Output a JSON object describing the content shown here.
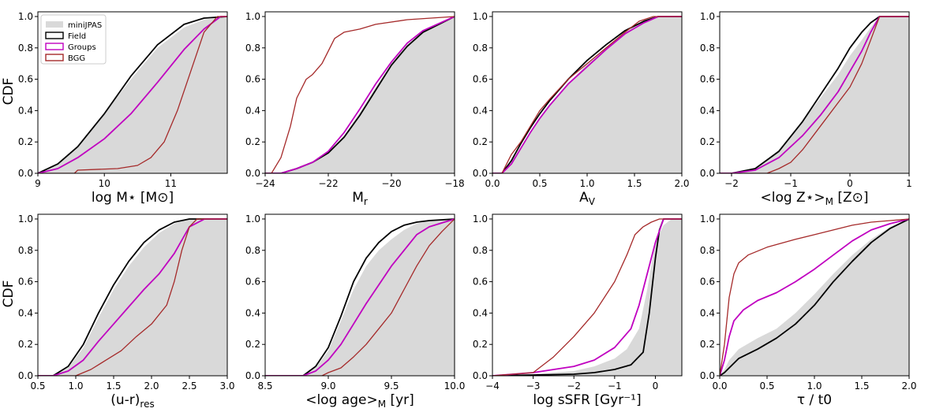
{
  "y_label": "CDF",
  "legend": [
    {
      "label": "miniJPAS",
      "color": "#d9d9d9",
      "kind": "fill"
    },
    {
      "label": "Field",
      "color": "#000000",
      "kind": "line"
    },
    {
      "label": "Groups",
      "color": "#c000c0",
      "kind": "line"
    },
    {
      "label": "BGG",
      "color": "#a52a2a",
      "kind": "line"
    }
  ],
  "chart_data": [
    {
      "type": "line",
      "xlabel": "log M⋆ [M⊙]",
      "xlim": [
        9,
        11.85
      ],
      "ylim": [
        0,
        1.03
      ],
      "xticks": [
        9,
        10,
        11
      ],
      "xticklabels": [
        "9",
        "10",
        "11"
      ],
      "series": [
        {
          "name": "miniJPAS",
          "x": [
            9.0,
            9.3,
            9.6,
            10.0,
            10.4,
            10.8,
            11.2,
            11.5,
            11.85
          ],
          "y": [
            0,
            0.06,
            0.17,
            0.38,
            0.6,
            0.8,
            0.93,
            0.98,
            1.0
          ]
        },
        {
          "name": "Field",
          "x": [
            9.0,
            9.3,
            9.6,
            10.0,
            10.4,
            10.8,
            11.2,
            11.5,
            11.85
          ],
          "y": [
            0,
            0.06,
            0.17,
            0.38,
            0.62,
            0.82,
            0.95,
            0.99,
            1.0
          ]
        },
        {
          "name": "Groups",
          "x": [
            9.0,
            9.3,
            9.6,
            10.0,
            10.4,
            10.8,
            11.2,
            11.5,
            11.75
          ],
          "y": [
            0,
            0.03,
            0.1,
            0.22,
            0.38,
            0.58,
            0.79,
            0.92,
            1.0
          ]
        },
        {
          "name": "BGG",
          "x": [
            9.0,
            9.55,
            9.6,
            10.2,
            10.5,
            10.7,
            10.9,
            11.1,
            11.3,
            11.5,
            11.7
          ],
          "y": [
            0,
            0,
            0.02,
            0.03,
            0.05,
            0.1,
            0.2,
            0.4,
            0.65,
            0.9,
            1.0
          ]
        }
      ]
    },
    {
      "type": "line",
      "xlabel": "M_r",
      "xlim": [
        -24,
        -18
      ],
      "ylim": [
        0,
        1.03
      ],
      "xticks": [
        -24,
        -22,
        -20,
        -18
      ],
      "xticklabels": [
        "−24",
        "−22",
        "−20",
        "−18"
      ],
      "series": [
        {
          "name": "miniJPAS",
          "x": [
            -23.5,
            -23.0,
            -22.5,
            -22.0,
            -21.5,
            -21.0,
            -20.5,
            -20.0,
            -19.5,
            -19.0,
            -18.0
          ],
          "y": [
            0,
            0.03,
            0.07,
            0.13,
            0.24,
            0.39,
            0.55,
            0.7,
            0.82,
            0.9,
            1.0
          ]
        },
        {
          "name": "Field",
          "x": [
            -23.5,
            -23.0,
            -22.5,
            -22.0,
            -21.5,
            -21.0,
            -20.5,
            -20.0,
            -19.5,
            -19.0,
            -18.0
          ],
          "y": [
            0,
            0.03,
            0.07,
            0.13,
            0.23,
            0.37,
            0.53,
            0.69,
            0.81,
            0.9,
            1.0
          ]
        },
        {
          "name": "Groups",
          "x": [
            -23.5,
            -23.0,
            -22.5,
            -22.0,
            -21.5,
            -21.0,
            -20.5,
            -20.0,
            -19.5,
            -19.0,
            -18.0
          ],
          "y": [
            0,
            0.03,
            0.07,
            0.14,
            0.26,
            0.41,
            0.57,
            0.71,
            0.83,
            0.91,
            1.0
          ]
        },
        {
          "name": "BGG",
          "x": [
            -23.8,
            -23.5,
            -23.2,
            -23.0,
            -22.7,
            -22.5,
            -22.2,
            -22.0,
            -21.8,
            -21.5,
            -21.0,
            -20.5,
            -19.5,
            -18.0
          ],
          "y": [
            0,
            0.1,
            0.3,
            0.48,
            0.6,
            0.63,
            0.7,
            0.78,
            0.86,
            0.9,
            0.92,
            0.95,
            0.98,
            1.0
          ]
        }
      ]
    },
    {
      "type": "line",
      "xlabel": "A_V",
      "xlim": [
        0,
        2.0
      ],
      "ylim": [
        0,
        1.03
      ],
      "xticks": [
        0,
        0.5,
        1.0,
        1.5,
        2.0
      ],
      "xticklabels": [
        "0.0",
        "0.5",
        "1.0",
        "1.5",
        "2.0"
      ],
      "series": [
        {
          "name": "miniJPAS",
          "x": [
            0.1,
            0.2,
            0.3,
            0.4,
            0.5,
            0.6,
            0.8,
            1.0,
            1.2,
            1.4,
            1.6,
            1.75,
            2.0
          ],
          "y": [
            0,
            0.07,
            0.17,
            0.26,
            0.35,
            0.43,
            0.57,
            0.7,
            0.8,
            0.9,
            0.97,
            1.0,
            1.0
          ]
        },
        {
          "name": "Field",
          "x": [
            0.1,
            0.2,
            0.3,
            0.4,
            0.5,
            0.6,
            0.8,
            1.0,
            1.2,
            1.4,
            1.6,
            1.75
          ],
          "y": [
            0,
            0.08,
            0.19,
            0.29,
            0.38,
            0.46,
            0.6,
            0.72,
            0.82,
            0.91,
            0.97,
            1.0
          ]
        },
        {
          "name": "Groups",
          "x": [
            0.1,
            0.2,
            0.3,
            0.4,
            0.5,
            0.6,
            0.8,
            1.0,
            1.2,
            1.4,
            1.6,
            1.75
          ],
          "y": [
            0,
            0.06,
            0.16,
            0.26,
            0.35,
            0.43,
            0.57,
            0.68,
            0.79,
            0.89,
            0.96,
            1.0
          ]
        },
        {
          "name": "BGG",
          "x": [
            0.1,
            0.2,
            0.3,
            0.4,
            0.5,
            0.6,
            0.8,
            1.0,
            1.2,
            1.4,
            1.55,
            1.7
          ],
          "y": [
            0,
            0.12,
            0.2,
            0.3,
            0.4,
            0.47,
            0.6,
            0.7,
            0.8,
            0.9,
            0.97,
            1.0
          ]
        }
      ]
    },
    {
      "type": "line",
      "xlabel": "<log Z⋆>_M [Z⊙]",
      "xlim": [
        -2.2,
        1.0
      ],
      "ylim": [
        0,
        1.03
      ],
      "xticks": [
        -2,
        -1,
        0,
        1
      ],
      "xticklabels": [
        "−2",
        "−1",
        "0",
        "1"
      ],
      "series": [
        {
          "name": "miniJPAS",
          "x": [
            -2.0,
            -1.6,
            -1.2,
            -0.8,
            -0.5,
            -0.2,
            0.0,
            0.2,
            0.35,
            0.5,
            1.0
          ],
          "y": [
            0,
            0.03,
            0.15,
            0.33,
            0.48,
            0.63,
            0.75,
            0.85,
            0.93,
            1.0,
            1.0
          ]
        },
        {
          "name": "Field",
          "x": [
            -2.0,
            -1.6,
            -1.2,
            -0.8,
            -0.5,
            -0.2,
            0.0,
            0.2,
            0.35,
            0.5
          ],
          "y": [
            0,
            0.03,
            0.14,
            0.33,
            0.5,
            0.67,
            0.8,
            0.9,
            0.96,
            1.0
          ]
        },
        {
          "name": "Groups",
          "x": [
            -2.0,
            -1.6,
            -1.2,
            -0.8,
            -0.5,
            -0.2,
            0.0,
            0.2,
            0.35,
            0.5
          ],
          "y": [
            0,
            0.02,
            0.1,
            0.24,
            0.37,
            0.52,
            0.65,
            0.78,
            0.9,
            1.0
          ]
        },
        {
          "name": "BGG",
          "x": [
            -1.4,
            -1.2,
            -1.0,
            -0.8,
            -0.6,
            -0.4,
            -0.2,
            0.0,
            0.2,
            0.35,
            0.5
          ],
          "y": [
            0,
            0.03,
            0.07,
            0.15,
            0.25,
            0.35,
            0.45,
            0.55,
            0.7,
            0.85,
            1.0
          ]
        }
      ]
    },
    {
      "type": "line",
      "xlabel": "(u-r)_res",
      "xlim": [
        0.5,
        3.0
      ],
      "ylim": [
        0,
        1.03
      ],
      "xticks": [
        0.5,
        1.0,
        1.5,
        2.0,
        2.5,
        3.0
      ],
      "xticklabels": [
        "0.5",
        "1.0",
        "1.5",
        "2.0",
        "2.5",
        "3.0"
      ],
      "series": [
        {
          "name": "miniJPAS",
          "x": [
            0.7,
            0.9,
            1.1,
            1.3,
            1.5,
            1.7,
            1.9,
            2.1,
            2.3,
            2.5,
            2.7,
            3.0
          ],
          "y": [
            0,
            0.05,
            0.18,
            0.37,
            0.55,
            0.7,
            0.82,
            0.91,
            0.97,
            1.0,
            1.0,
            1.0
          ]
        },
        {
          "name": "Field",
          "x": [
            0.7,
            0.9,
            1.1,
            1.3,
            1.5,
            1.7,
            1.9,
            2.1,
            2.3,
            2.5,
            2.6
          ],
          "y": [
            0,
            0.06,
            0.2,
            0.4,
            0.58,
            0.73,
            0.85,
            0.93,
            0.98,
            1.0,
            1.0
          ]
        },
        {
          "name": "Groups",
          "x": [
            0.7,
            0.9,
            1.1,
            1.3,
            1.5,
            1.7,
            1.9,
            2.1,
            2.3,
            2.5,
            2.7
          ],
          "y": [
            0,
            0.03,
            0.1,
            0.22,
            0.33,
            0.44,
            0.55,
            0.65,
            0.78,
            0.95,
            1.0
          ]
        },
        {
          "name": "BGG",
          "x": [
            1.0,
            1.2,
            1.4,
            1.6,
            1.8,
            2.0,
            2.2,
            2.3,
            2.4,
            2.5,
            2.6
          ],
          "y": [
            0,
            0.04,
            0.1,
            0.16,
            0.25,
            0.33,
            0.45,
            0.6,
            0.8,
            0.95,
            1.0
          ]
        }
      ]
    },
    {
      "type": "line",
      "xlabel": "<log age>_M [yr]",
      "xlim": [
        8.5,
        10.0
      ],
      "ylim": [
        0,
        1.03
      ],
      "xticks": [
        8.5,
        9.0,
        9.5,
        10.0
      ],
      "xticklabels": [
        "8.5",
        "9.0",
        "9.5",
        "10.0"
      ],
      "series": [
        {
          "name": "miniJPAS",
          "x": [
            8.8,
            8.9,
            9.0,
            9.1,
            9.2,
            9.3,
            9.4,
            9.5,
            9.6,
            9.7,
            9.8,
            10.0
          ],
          "y": [
            0,
            0.05,
            0.16,
            0.35,
            0.55,
            0.7,
            0.8,
            0.87,
            0.93,
            0.97,
            0.99,
            1.0
          ]
        },
        {
          "name": "Field",
          "x": [
            8.8,
            8.9,
            9.0,
            9.1,
            9.2,
            9.3,
            9.4,
            9.5,
            9.6,
            9.7,
            9.8,
            10.0
          ],
          "y": [
            0,
            0.06,
            0.18,
            0.38,
            0.6,
            0.75,
            0.85,
            0.92,
            0.96,
            0.98,
            0.99,
            1.0
          ]
        },
        {
          "name": "Groups",
          "x": [
            8.8,
            8.9,
            9.0,
            9.1,
            9.2,
            9.3,
            9.4,
            9.5,
            9.6,
            9.7,
            9.8,
            10.0
          ],
          "y": [
            0,
            0.03,
            0.1,
            0.2,
            0.33,
            0.46,
            0.58,
            0.7,
            0.8,
            0.9,
            0.95,
            1.0
          ]
        },
        {
          "name": "BGG",
          "x": [
            8.95,
            9.0,
            9.1,
            9.2,
            9.3,
            9.4,
            9.5,
            9.6,
            9.7,
            9.8,
            9.9,
            10.0
          ],
          "y": [
            0,
            0.02,
            0.05,
            0.12,
            0.2,
            0.3,
            0.4,
            0.55,
            0.7,
            0.83,
            0.92,
            1.0
          ]
        }
      ]
    },
    {
      "type": "line",
      "xlabel": "log sSFR [Gyr⁻¹]",
      "xlim": [
        -4,
        0.65
      ],
      "ylim": [
        0,
        1.03
      ],
      "xticks": [
        -4,
        -3,
        -2,
        -1,
        0
      ],
      "xticklabels": [
        "−4",
        "−3",
        "−2",
        "−1",
        "0"
      ],
      "series": [
        {
          "name": "miniJPAS",
          "x": [
            -4.0,
            -3.0,
            -2.0,
            -1.5,
            -1.0,
            -0.7,
            -0.4,
            -0.2,
            0.0,
            0.2,
            0.4,
            0.65
          ],
          "y": [
            0,
            0.01,
            0.03,
            0.06,
            0.11,
            0.17,
            0.3,
            0.55,
            0.85,
            0.96,
            1.0,
            1.0
          ]
        },
        {
          "name": "Field",
          "x": [
            -4.0,
            -3.0,
            -2.0,
            -1.5,
            -1.0,
            -0.6,
            -0.3,
            -0.15,
            0.0,
            0.1,
            0.2,
            0.65
          ],
          "y": [
            0,
            0.005,
            0.01,
            0.02,
            0.04,
            0.07,
            0.15,
            0.4,
            0.75,
            0.93,
            1.0,
            1.0
          ]
        },
        {
          "name": "Groups",
          "x": [
            -4.0,
            -3.0,
            -2.0,
            -1.5,
            -1.0,
            -0.6,
            -0.4,
            -0.2,
            0.0,
            0.2,
            0.65
          ],
          "y": [
            0,
            0.02,
            0.06,
            0.1,
            0.18,
            0.3,
            0.45,
            0.65,
            0.85,
            1.0,
            1.0
          ]
        },
        {
          "name": "BGG",
          "x": [
            -4.0,
            -3.0,
            -2.5,
            -2.0,
            -1.5,
            -1.0,
            -0.7,
            -0.5,
            -0.3,
            -0.1,
            0.1,
            0.65
          ],
          "y": [
            0,
            0.02,
            0.12,
            0.25,
            0.4,
            0.6,
            0.77,
            0.9,
            0.95,
            0.98,
            1.0,
            1.0
          ]
        }
      ]
    },
    {
      "type": "line",
      "xlabel": "τ / t0",
      "xlim": [
        0,
        2.0
      ],
      "ylim": [
        0,
        1.03
      ],
      "xticks": [
        0,
        0.5,
        1.0,
        1.5,
        2.0
      ],
      "xticklabels": [
        "0.0",
        "0.5",
        "1.0",
        "1.5",
        "2.0"
      ],
      "series": [
        {
          "name": "miniJPAS",
          "x": [
            0.0,
            0.05,
            0.1,
            0.2,
            0.4,
            0.6,
            0.8,
            1.0,
            1.2,
            1.4,
            1.6,
            1.8,
            2.0
          ],
          "y": [
            0,
            0.04,
            0.1,
            0.17,
            0.24,
            0.3,
            0.4,
            0.52,
            0.65,
            0.77,
            0.87,
            0.95,
            1.0
          ]
        },
        {
          "name": "Field",
          "x": [
            0.0,
            0.05,
            0.1,
            0.2,
            0.4,
            0.6,
            0.8,
            1.0,
            1.2,
            1.4,
            1.6,
            1.8,
            2.0
          ],
          "y": [
            0,
            0.02,
            0.05,
            0.11,
            0.17,
            0.24,
            0.33,
            0.45,
            0.6,
            0.73,
            0.85,
            0.94,
            1.0
          ]
        },
        {
          "name": "Groups",
          "x": [
            0.0,
            0.05,
            0.1,
            0.15,
            0.25,
            0.4,
            0.6,
            0.8,
            1.0,
            1.2,
            1.4,
            1.6,
            1.8,
            2.0
          ],
          "y": [
            0,
            0.1,
            0.25,
            0.35,
            0.42,
            0.48,
            0.53,
            0.6,
            0.68,
            0.77,
            0.86,
            0.93,
            0.97,
            1.0
          ]
        },
        {
          "name": "BGG",
          "x": [
            0.0,
            0.05,
            0.1,
            0.15,
            0.2,
            0.3,
            0.5,
            0.8,
            1.0,
            1.2,
            1.4,
            1.6,
            1.8,
            2.0
          ],
          "y": [
            0,
            0.2,
            0.5,
            0.65,
            0.72,
            0.77,
            0.82,
            0.87,
            0.9,
            0.93,
            0.96,
            0.98,
            0.99,
            1.0
          ]
        }
      ]
    }
  ]
}
